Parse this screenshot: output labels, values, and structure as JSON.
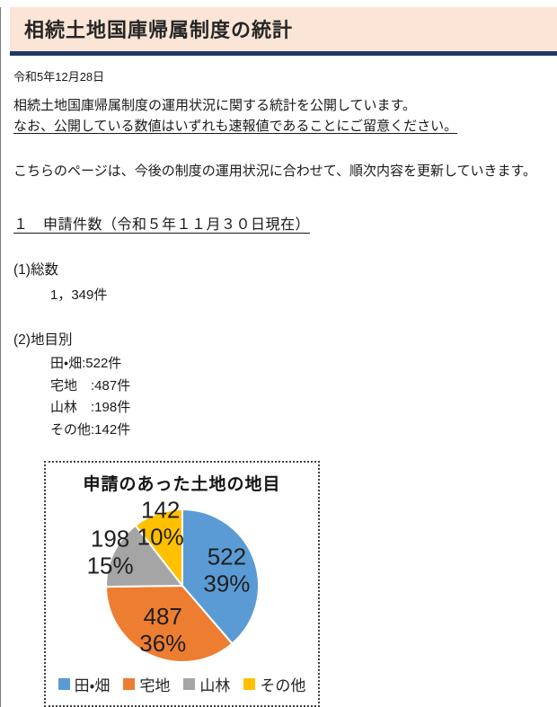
{
  "masthead": {
    "title": "相続土地国庫帰属制度の統計"
  },
  "date_line": "令和5年12月28日",
  "intro": {
    "line1": "相続土地国庫帰属制度の運用状況に関する統計を公開しています。",
    "note_underlined": "なお、公開している数値はいずれも速報値であることにご留意ください。",
    "update_note": "こちらのページは、今後の制度の運用状況に合わせて、順次内容を更新していきます。"
  },
  "section_applications": {
    "heading": "１　申請件数（令和５年１１月３０日現在）",
    "total_label": "(1)総数",
    "total_value": "1，349件",
    "by_type_label": "(2)地目別",
    "by_type_items": [
      "田・畑:522件",
      "宅地　:487件",
      "山林　:198件",
      "その他:142件"
    ]
  },
  "chart_data": {
    "type": "pie",
    "title": "申請のあった土地の地目",
    "categories": [
      "田・畑",
      "宅地",
      "山林",
      "その他"
    ],
    "values": [
      522,
      487,
      198,
      142
    ],
    "percent_labels": [
      "39%",
      "36%",
      "15%",
      "10%"
    ],
    "colors": [
      "#5B9BD5",
      "#ED7D31",
      "#A5A5A5",
      "#FFC000"
    ],
    "total": 1349,
    "start_angle_deg": 0,
    "direction": "clockwise",
    "legend_position": "bottom",
    "label_radius_factors": [
      0.62,
      0.62,
      1.05,
      0.88
    ]
  },
  "theme_colors": {
    "header_bg": "#FBE5D6",
    "header_rule": "#1F3864"
  }
}
